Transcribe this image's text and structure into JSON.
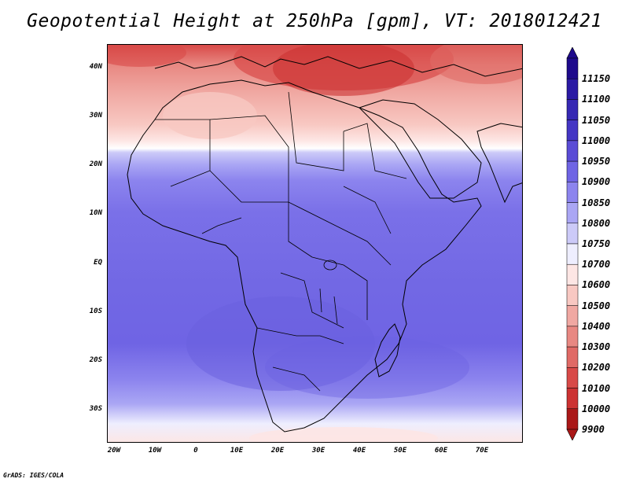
{
  "title": "Geopotential Height at 250hPa [gpm], VT: 2018012421",
  "footer": "GrADS: IGES/COLA",
  "lat_labels": [
    "40N",
    "30N",
    "20N",
    "10N",
    "EQ",
    "10S",
    "20S",
    "30S"
  ],
  "lon_labels": [
    "20W",
    "10W",
    "0",
    "10E",
    "20E",
    "30E",
    "40E",
    "50E",
    "60E",
    "70E"
  ],
  "colorbar": {
    "levels": [
      "11150",
      "11100",
      "11050",
      "11000",
      "10950",
      "10900",
      "10850",
      "10800",
      "10750",
      "10700",
      "10600",
      "10500",
      "10400",
      "10300",
      "10200",
      "10100",
      "10000",
      "9900"
    ],
    "colors": [
      "#1e0a8c",
      "#2a1aa4",
      "#3628b4",
      "#4436c4",
      "#5a4cd6",
      "#6f64e4",
      "#8c84ee",
      "#aaa6f4",
      "#cccaf8",
      "#eeeefe",
      "#fde6e4",
      "#f8c8c2",
      "#f0a8a2",
      "#e88882",
      "#e06a66",
      "#d84a48",
      "#cc3232",
      "#aa1818"
    ]
  },
  "map": {
    "region": "Africa",
    "variable": "Geopotential Height",
    "level": "250hPa",
    "units": "gpm",
    "valid_time": "2018012421"
  }
}
